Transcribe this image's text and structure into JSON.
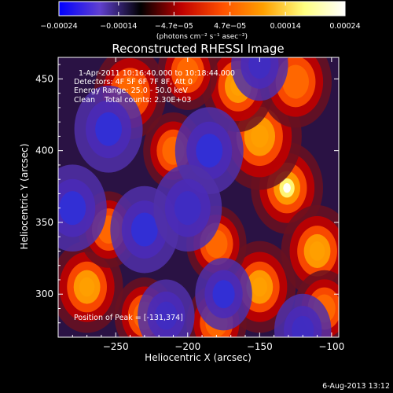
{
  "chart_data": {
    "type": "heatmap",
    "title": "Reconstructed RHESSI Image",
    "xlabel": "Heliocentric X (arcsec)",
    "ylabel": "Heliocentric Y (arcsec)",
    "xlim": [
      -290,
      -95
    ],
    "ylim": [
      270,
      465
    ],
    "x_ticks": [
      {
        "value": -250,
        "label": "−250"
      },
      {
        "value": -200,
        "label": "−200"
      },
      {
        "value": -150,
        "label": "−150"
      },
      {
        "value": -100,
        "label": "−100"
      }
    ],
    "y_ticks": [
      {
        "value": 300,
        "label": "300"
      },
      {
        "value": 350,
        "label": "350"
      },
      {
        "value": 400,
        "label": "400"
      },
      {
        "value": 450,
        "label": "450"
      }
    ],
    "colorbar": {
      "range": [
        -0.00024,
        0.00024
      ],
      "tick_values": [
        -0.00024,
        -0.00014,
        -4.7e-05,
        4.7e-05,
        0.00014,
        0.00024
      ],
      "tick_labels": [
        "−0.00024",
        "−0.00014",
        "−4.7e−05",
        "4.7e−05",
        "0.00014",
        "0.00024"
      ],
      "unit_label": "(photons cm⁻² s⁻¹ asec⁻²)",
      "colors": [
        "#0000ff",
        "#6040d0",
        "#000000",
        "#c00000",
        "#ff5000",
        "#ffa000",
        "#ffff80",
        "#ffffff"
      ]
    },
    "annotations": {
      "time_range": "1-Apr-2011 10:16:40.000 to 10:18:44.000",
      "detectors": "Detectors: 4F 5F 6F 7F 8F, Att 0",
      "energy": "Energy Range: 25.0 - 50.0 keV",
      "clean": "Clean    Total counts: 2.30E+03",
      "peak": "Position of Peak = [-131,374]"
    },
    "peak": {
      "x": -131,
      "y": 374
    },
    "features": [
      {
        "x": -131,
        "y": 374,
        "v": 1.0,
        "s": 12
      },
      {
        "x": -150,
        "y": 410,
        "v": 0.7,
        "s": 14
      },
      {
        "x": -165,
        "y": 445,
        "v": 0.6,
        "s": 12
      },
      {
        "x": -125,
        "y": 448,
        "v": 0.5,
        "s": 12
      },
      {
        "x": -110,
        "y": 330,
        "v": 0.55,
        "s": 12
      },
      {
        "x": -150,
        "y": 305,
        "v": 0.6,
        "s": 12
      },
      {
        "x": -180,
        "y": 335,
        "v": 0.45,
        "s": 10
      },
      {
        "x": -270,
        "y": 305,
        "v": 0.55,
        "s": 12
      },
      {
        "x": -255,
        "y": 345,
        "v": 0.4,
        "s": 10
      },
      {
        "x": -240,
        "y": 440,
        "v": 0.45,
        "s": 12
      },
      {
        "x": -210,
        "y": 400,
        "v": 0.4,
        "s": 10
      },
      {
        "x": -200,
        "y": 455,
        "v": 0.35,
        "s": 10
      },
      {
        "x": -230,
        "y": 285,
        "v": 0.4,
        "s": 10
      },
      {
        "x": -105,
        "y": 290,
        "v": 0.4,
        "s": 10
      },
      {
        "x": -180,
        "y": 280,
        "v": 0.35,
        "s": 10
      },
      {
        "x": -255,
        "y": 415,
        "v": -0.5,
        "s": 12
      },
      {
        "x": -185,
        "y": 400,
        "v": -0.5,
        "s": 12
      },
      {
        "x": -230,
        "y": 345,
        "v": -0.45,
        "s": 12
      },
      {
        "x": -280,
        "y": 360,
        "v": -0.5,
        "s": 12
      },
      {
        "x": -175,
        "y": 300,
        "v": -0.45,
        "s": 10
      },
      {
        "x": -150,
        "y": 460,
        "v": -0.35,
        "s": 10
      },
      {
        "x": -215,
        "y": 285,
        "v": -0.4,
        "s": 10
      },
      {
        "x": -120,
        "y": 275,
        "v": -0.3,
        "s": 10
      },
      {
        "x": -200,
        "y": 360,
        "v": -0.4,
        "s": 12
      }
    ]
  },
  "footer": {
    "date": "6-Aug-2013 13:12"
  }
}
